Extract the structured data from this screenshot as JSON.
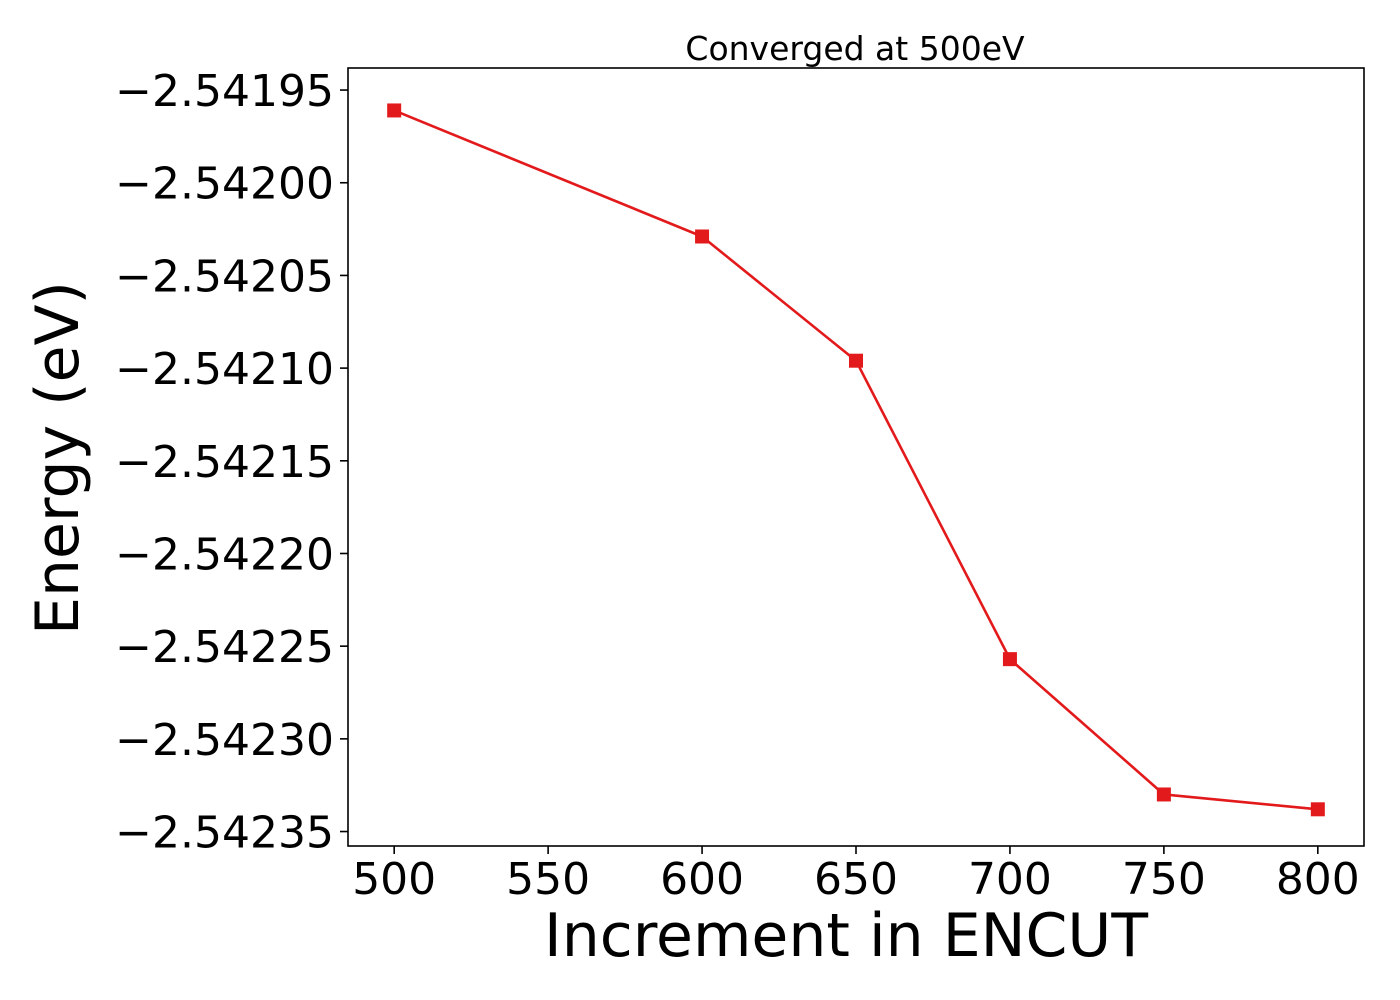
{
  "chart_data": {
    "type": "line",
    "title": "Converged at 500eV",
    "xlabel": "Increment in ENCUT",
    "ylabel": "Energy (eV)",
    "x": [
      500,
      600,
      650,
      700,
      750,
      800
    ],
    "series": [
      {
        "name": "",
        "values": [
          -2.541961,
          -2.542029,
          -2.542096,
          -2.542257,
          -2.54233,
          -2.542338
        ],
        "color": "#e31a1c",
        "marker": "square"
      }
    ],
    "xlim": [
      485,
      815
    ],
    "ylim": [
      -2.5423578,
      -2.5419381
    ],
    "xticks": [
      500,
      550,
      600,
      650,
      700,
      750,
      800
    ],
    "xtick_labels": [
      "500",
      "550",
      "600",
      "650",
      "700",
      "750",
      "800"
    ],
    "yticks": [
      -2.54195,
      -2.542,
      -2.54205,
      -2.5421,
      -2.54215,
      -2.5422,
      -2.54225,
      -2.5423,
      -2.54235
    ],
    "ytick_labels": [
      "−2.54195",
      "−2.54200",
      "−2.54205",
      "−2.54210",
      "−2.54215",
      "−2.54220",
      "−2.54225",
      "−2.54230",
      "−2.54235"
    ],
    "grid": false,
    "legend": "none"
  }
}
